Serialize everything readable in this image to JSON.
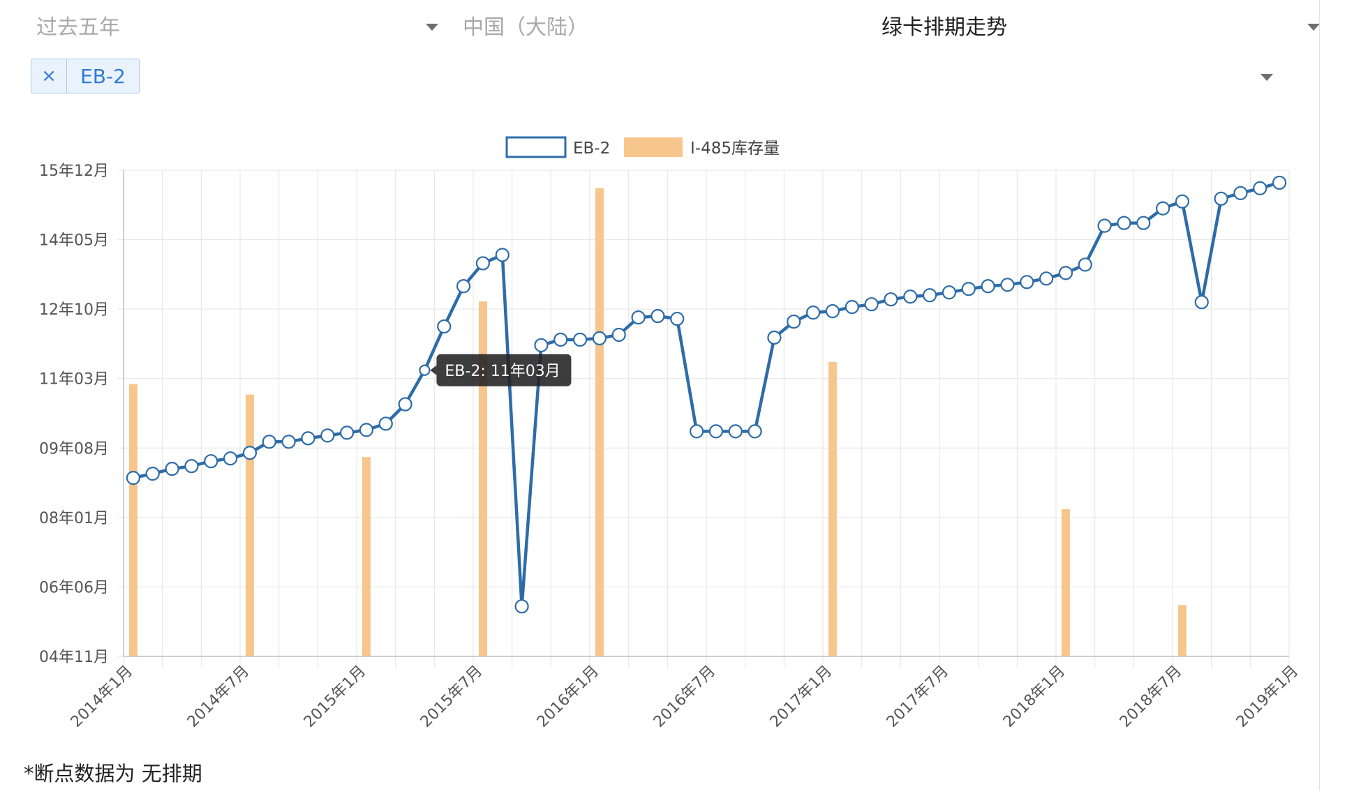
{
  "filters": {
    "period": "过去五年",
    "country": "中国（大陆）",
    "view": "绿卡排期走势"
  },
  "tags": [
    {
      "close": "×",
      "label": "EB-2"
    }
  ],
  "footnote": "*断点数据为 无排期",
  "colors": {
    "line": "#2e6ca8",
    "bar": "#f7c68c",
    "tag_text": "#2e7ad6",
    "tag_bg": "#eaf3fd",
    "tag_border": "#a8c8f0"
  },
  "icons": {
    "dropdown": "chevron-down-icon",
    "remove_tag": "close-icon"
  },
  "chart_data": {
    "type": "line",
    "legend": [
      {
        "name": "EB-2",
        "kind": "line"
      },
      {
        "name": "I-485库存量",
        "kind": "bar"
      }
    ],
    "legend_position": "top-center",
    "grid": true,
    "x_tick_labels": [
      "2014年1月",
      "2014年7月",
      "2015年1月",
      "2015年7月",
      "2016年1月",
      "2016年7月",
      "2017年1月",
      "2017年7月",
      "2018年1月",
      "2018年7月",
      "2019年1月"
    ],
    "y_tick_labels": [
      "04年11月",
      "06年06月",
      "08年01月",
      "09年08月",
      "11年03月",
      "12年10月",
      "14年05月",
      "15年12月"
    ],
    "y_range": [
      0,
      7
    ],
    "series": [
      {
        "name": "EB-2",
        "values": [
          2.57,
          2.63,
          2.7,
          2.74,
          2.81,
          2.85,
          2.93,
          3.09,
          3.09,
          3.14,
          3.18,
          3.22,
          3.26,
          3.35,
          3.63,
          4.12,
          4.75,
          5.33,
          5.66,
          5.78,
          0.72,
          4.48,
          4.56,
          4.56,
          4.58,
          4.63,
          4.88,
          4.9,
          4.86,
          3.24,
          3.24,
          3.24,
          3.24,
          4.59,
          4.82,
          4.95,
          4.97,
          5.03,
          5.07,
          5.14,
          5.18,
          5.2,
          5.24,
          5.29,
          5.33,
          5.35,
          5.39,
          5.44,
          5.52,
          5.64,
          6.2,
          6.24,
          6.24,
          6.45,
          6.55,
          5.1,
          6.59,
          6.67,
          6.74,
          6.82
        ]
      },
      {
        "name": "I-485库存量",
        "values": [
          3.92,
          null,
          null,
          null,
          null,
          null,
          3.77,
          null,
          null,
          null,
          null,
          null,
          2.87,
          null,
          null,
          null,
          null,
          null,
          5.11,
          null,
          null,
          null,
          null,
          null,
          6.74,
          null,
          null,
          null,
          null,
          null,
          null,
          null,
          null,
          null,
          null,
          null,
          4.24,
          null,
          null,
          null,
          null,
          null,
          null,
          null,
          null,
          null,
          null,
          null,
          2.12,
          null,
          null,
          null,
          null,
          null,
          0.74,
          null,
          null,
          null,
          null,
          null
        ]
      }
    ],
    "tooltip": {
      "text": "EB-2: 11年03月",
      "point_index": 15
    }
  }
}
